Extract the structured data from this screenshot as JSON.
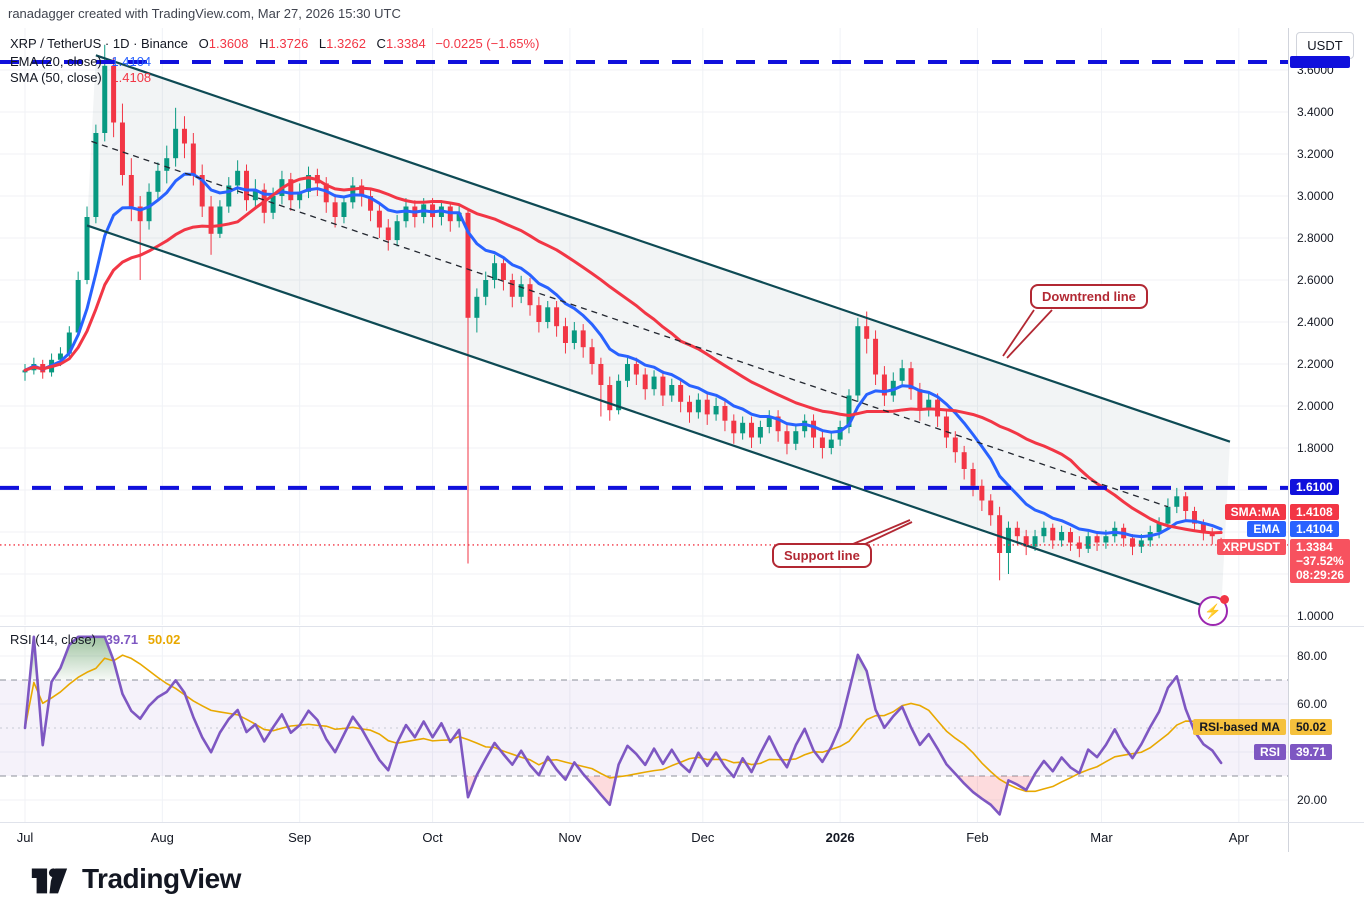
{
  "attribution": "ranadagger created with TradingView.com, Mar 27, 2026 15:30 UTC",
  "header": {
    "title": "XRP / TetherUS · 1D · Binance",
    "ohlc": [
      {
        "k": "O",
        "v": "1.3608"
      },
      {
        "k": "H",
        "v": "1.3726"
      },
      {
        "k": "L",
        "v": "1.3262"
      },
      {
        "k": "C",
        "v": "1.3384"
      }
    ],
    "change": "−0.0225 (−1.65%)"
  },
  "legend": {
    "ema_label": "EMA (20, close)",
    "ema_value": "1.4104",
    "sma_label": "SMA (50, close)",
    "sma_value": "1.4108",
    "rsi_label": "RSI (14, close)",
    "rsi_value": "39.71",
    "rsi_ma_value": "50.02"
  },
  "price_scale": {
    "currency_button": "USDT",
    "labels": {
      "support_level": "1.6100",
      "sma_tag": "SMA:MA",
      "sma_value": "1.4108",
      "ema_tag": "EMA",
      "ema_value": "1.4104",
      "symbol_tag": "XRPUSDT",
      "last_price": "1.3384",
      "change_pct": "−37.52%",
      "countdown": "08:29:26",
      "rsi_ma_tag": "RSI-based MA",
      "rsi_ma_value": "50.02",
      "rsi_tag": "RSI",
      "rsi_value": "39.71"
    }
  },
  "annotations": {
    "downtrend": "Downtrend line",
    "support": "Support line"
  },
  "logo": {
    "text": "TradingView"
  },
  "icons": {
    "alert_bolt": "⚡"
  },
  "colors": {
    "green": "#089981",
    "red": "#F23645",
    "ema_blue": "#2962FF",
    "sma_red": "#F23645",
    "channel_line": "#0E4A54",
    "channel_fill": "rgba(90,110,125,0.08)",
    "median_dash": "#22262F",
    "level_blue": "#1010DC",
    "callout_red": "#B22833",
    "rsi_purple": "#7E57C2",
    "rsi_yellow": "#E8A800",
    "rsi_band_fill": "rgba(126,87,194,0.08)",
    "overbought_green": "#2E7D32",
    "oversold_red": "#F23645",
    "grid": "#F0F2F6",
    "text": "#131722"
  },
  "chart_data": {
    "type": "candlestick",
    "symbol": "XRPUSDT",
    "interval": "1D",
    "price_axis": {
      "ticks": [
        "3.6000",
        "3.4000",
        "3.2000",
        "3.0000",
        "2.8000",
        "2.6000",
        "2.4000",
        "2.2000",
        "2.0000",
        "1.8000",
        "1.0000"
      ],
      "grid_min": 1.0,
      "grid_max": 3.6,
      "grid_step": 0.2
    },
    "rsi_axis": {
      "ticks": [
        "80.00",
        "60.00",
        "20.00"
      ],
      "grid": [
        80,
        60,
        40,
        20
      ],
      "overbought": 70,
      "oversold": 30,
      "mid": 50
    },
    "months": [
      {
        "label": "Jul",
        "day": 0
      },
      {
        "label": "Aug",
        "day": 31
      },
      {
        "label": "Sep",
        "day": 62
      },
      {
        "label": "Oct",
        "day": 92
      },
      {
        "label": "Nov",
        "day": 123
      },
      {
        "label": "Dec",
        "day": 153
      },
      {
        "label": "2026",
        "day": 184,
        "bold": true
      },
      {
        "label": "Feb",
        "day": 215
      },
      {
        "label": "Mar",
        "day": 243
      },
      {
        "label": "Apr",
        "day": 274
      }
    ],
    "days_per_candle": 2,
    "candles": [
      [
        2.16,
        2.2,
        2.12,
        2.17
      ],
      [
        2.17,
        2.23,
        2.15,
        2.2
      ],
      [
        2.2,
        2.22,
        2.13,
        2.16
      ],
      [
        2.16,
        2.25,
        2.14,
        2.22
      ],
      [
        2.22,
        2.28,
        2.19,
        2.25
      ],
      [
        2.25,
        2.38,
        2.23,
        2.35
      ],
      [
        2.35,
        2.64,
        2.33,
        2.6
      ],
      [
        2.6,
        2.95,
        2.58,
        2.9
      ],
      [
        2.9,
        3.34,
        2.87,
        3.3
      ],
      [
        3.3,
        3.72,
        3.26,
        3.62
      ],
      [
        3.62,
        3.66,
        3.28,
        3.35
      ],
      [
        3.35,
        3.44,
        3.05,
        3.1
      ],
      [
        3.1,
        3.18,
        2.88,
        2.95
      ],
      [
        2.95,
        3.0,
        2.6,
        2.88
      ],
      [
        2.88,
        3.06,
        2.84,
        3.02
      ],
      [
        3.02,
        3.16,
        2.98,
        3.12
      ],
      [
        3.12,
        3.24,
        3.06,
        3.18
      ],
      [
        3.18,
        3.42,
        3.14,
        3.32
      ],
      [
        3.32,
        3.38,
        3.18,
        3.25
      ],
      [
        3.25,
        3.3,
        3.05,
        3.1
      ],
      [
        3.1,
        3.15,
        2.9,
        2.95
      ],
      [
        2.95,
        3.0,
        2.72,
        2.82
      ],
      [
        2.82,
        2.98,
        2.8,
        2.95
      ],
      [
        2.95,
        3.09,
        2.92,
        3.05
      ],
      [
        3.05,
        3.17,
        3.01,
        3.12
      ],
      [
        3.12,
        3.15,
        2.93,
        2.98
      ],
      [
        2.98,
        3.08,
        2.94,
        3.03
      ],
      [
        3.03,
        3.06,
        2.87,
        2.92
      ],
      [
        2.92,
        3.04,
        2.89,
        3.0
      ],
      [
        3.0,
        3.12,
        2.96,
        3.08
      ],
      [
        3.08,
        3.11,
        2.93,
        2.98
      ],
      [
        2.98,
        3.06,
        2.94,
        3.02
      ],
      [
        3.02,
        3.14,
        2.99,
        3.1
      ],
      [
        3.1,
        3.13,
        3.0,
        3.06
      ],
      [
        3.06,
        3.09,
        2.92,
        2.97
      ],
      [
        2.97,
        3.01,
        2.85,
        2.9
      ],
      [
        2.9,
        3.0,
        2.87,
        2.97
      ],
      [
        2.97,
        3.09,
        2.94,
        3.05
      ],
      [
        3.05,
        3.08,
        2.95,
        3.0
      ],
      [
        3.0,
        3.03,
        2.88,
        2.93
      ],
      [
        2.93,
        2.96,
        2.8,
        2.85
      ],
      [
        2.85,
        2.89,
        2.74,
        2.79
      ],
      [
        2.79,
        2.91,
        2.76,
        2.88
      ],
      [
        2.88,
        2.99,
        2.85,
        2.95
      ],
      [
        2.95,
        2.98,
        2.85,
        2.9
      ],
      [
        2.9,
        2.99,
        2.87,
        2.96
      ],
      [
        2.96,
        2.99,
        2.85,
        2.9
      ],
      [
        2.9,
        2.98,
        2.86,
        2.95
      ],
      [
        2.95,
        2.97,
        2.83,
        2.88
      ],
      [
        2.88,
        2.96,
        2.85,
        2.92
      ],
      [
        2.92,
        2.94,
        1.25,
        2.42
      ],
      [
        2.42,
        2.56,
        2.35,
        2.52
      ],
      [
        2.52,
        2.64,
        2.48,
        2.6
      ],
      [
        2.6,
        2.72,
        2.56,
        2.68
      ],
      [
        2.68,
        2.71,
        2.55,
        2.6
      ],
      [
        2.6,
        2.63,
        2.47,
        2.52
      ],
      [
        2.52,
        2.62,
        2.49,
        2.58
      ],
      [
        2.58,
        2.61,
        2.43,
        2.48
      ],
      [
        2.48,
        2.52,
        2.35,
        2.4
      ],
      [
        2.4,
        2.5,
        2.37,
        2.47
      ],
      [
        2.47,
        2.5,
        2.33,
        2.38
      ],
      [
        2.38,
        2.42,
        2.25,
        2.3
      ],
      [
        2.3,
        2.4,
        2.27,
        2.36
      ],
      [
        2.36,
        2.39,
        2.23,
        2.28
      ],
      [
        2.28,
        2.32,
        2.15,
        2.2
      ],
      [
        2.2,
        2.23,
        1.95,
        2.1
      ],
      [
        2.1,
        2.14,
        1.93,
        1.98
      ],
      [
        1.98,
        2.15,
        1.96,
        2.12
      ],
      [
        2.12,
        2.24,
        2.09,
        2.2
      ],
      [
        2.2,
        2.23,
        2.1,
        2.15
      ],
      [
        2.15,
        2.18,
        2.03,
        2.08
      ],
      [
        2.08,
        2.17,
        2.05,
        2.14
      ],
      [
        2.14,
        2.17,
        2.0,
        2.05
      ],
      [
        2.05,
        2.13,
        2.02,
        2.1
      ],
      [
        2.1,
        2.13,
        1.97,
        2.02
      ],
      [
        2.02,
        2.05,
        1.92,
        1.97
      ],
      [
        1.97,
        2.06,
        1.94,
        2.03
      ],
      [
        2.03,
        2.06,
        1.91,
        1.96
      ],
      [
        1.96,
        2.04,
        1.93,
        2.0
      ],
      [
        2.0,
        2.03,
        1.88,
        1.93
      ],
      [
        1.93,
        1.96,
        1.82,
        1.87
      ],
      [
        1.87,
        1.95,
        1.84,
        1.92
      ],
      [
        1.92,
        1.95,
        1.8,
        1.85
      ],
      [
        1.85,
        1.93,
        1.82,
        1.9
      ],
      [
        1.9,
        1.98,
        1.87,
        1.95
      ],
      [
        1.95,
        1.98,
        1.83,
        1.88
      ],
      [
        1.88,
        1.91,
        1.77,
        1.82
      ],
      [
        1.82,
        1.91,
        1.79,
        1.88
      ],
      [
        1.88,
        1.96,
        1.85,
        1.93
      ],
      [
        1.93,
        1.96,
        1.8,
        1.85
      ],
      [
        1.85,
        1.88,
        1.75,
        1.8
      ],
      [
        1.8,
        1.87,
        1.77,
        1.84
      ],
      [
        1.84,
        1.93,
        1.81,
        1.9
      ],
      [
        1.9,
        2.08,
        1.87,
        2.05
      ],
      [
        2.05,
        2.42,
        2.02,
        2.38
      ],
      [
        2.38,
        2.45,
        2.25,
        2.32
      ],
      [
        2.32,
        2.36,
        2.1,
        2.15
      ],
      [
        2.15,
        2.19,
        2.0,
        2.05
      ],
      [
        2.05,
        2.16,
        2.02,
        2.12
      ],
      [
        2.12,
        2.22,
        2.09,
        2.18
      ],
      [
        2.18,
        2.21,
        2.03,
        2.08
      ],
      [
        2.08,
        2.11,
        1.93,
        1.98
      ],
      [
        1.98,
        2.07,
        1.95,
        2.03
      ],
      [
        2.03,
        2.06,
        1.9,
        1.95
      ],
      [
        1.95,
        1.98,
        1.8,
        1.85
      ],
      [
        1.85,
        1.88,
        1.73,
        1.78
      ],
      [
        1.78,
        1.81,
        1.65,
        1.7
      ],
      [
        1.7,
        1.73,
        1.57,
        1.62
      ],
      [
        1.62,
        1.65,
        1.5,
        1.55
      ],
      [
        1.55,
        1.58,
        1.43,
        1.48
      ],
      [
        1.48,
        1.52,
        1.17,
        1.3
      ],
      [
        1.3,
        1.45,
        1.2,
        1.42
      ],
      [
        1.42,
        1.45,
        1.34,
        1.38
      ],
      [
        1.38,
        1.41,
        1.29,
        1.33
      ],
      [
        1.33,
        1.41,
        1.31,
        1.38
      ],
      [
        1.38,
        1.45,
        1.35,
        1.42
      ],
      [
        1.42,
        1.44,
        1.32,
        1.36
      ],
      [
        1.36,
        1.43,
        1.33,
        1.4
      ],
      [
        1.4,
        1.42,
        1.31,
        1.35
      ],
      [
        1.35,
        1.38,
        1.28,
        1.32
      ],
      [
        1.32,
        1.4,
        1.3,
        1.38
      ],
      [
        1.38,
        1.4,
        1.31,
        1.35
      ],
      [
        1.35,
        1.41,
        1.32,
        1.38
      ],
      [
        1.38,
        1.45,
        1.35,
        1.42
      ],
      [
        1.42,
        1.44,
        1.33,
        1.37
      ],
      [
        1.37,
        1.39,
        1.29,
        1.33
      ],
      [
        1.33,
        1.39,
        1.3,
        1.36
      ],
      [
        1.36,
        1.43,
        1.33,
        1.4
      ],
      [
        1.4,
        1.47,
        1.37,
        1.44
      ],
      [
        1.44,
        1.56,
        1.41,
        1.52
      ],
      [
        1.52,
        1.61,
        1.49,
        1.57
      ],
      [
        1.57,
        1.59,
        1.46,
        1.5
      ],
      [
        1.5,
        1.52,
        1.4,
        1.44
      ],
      [
        1.44,
        1.46,
        1.36,
        1.4
      ],
      [
        1.4,
        1.42,
        1.34,
        1.38
      ],
      [
        1.3608,
        1.3726,
        1.3262,
        1.3384
      ]
    ],
    "levels": {
      "resistance": 3.638,
      "support": 1.61,
      "last_price": 1.3384
    },
    "channel": {
      "upper": [
        [
          16,
          3.67
        ],
        [
          272,
          1.83
        ]
      ],
      "lower": [
        [
          14,
          2.86
        ],
        [
          270,
          1.02
        ]
      ],
      "median": [
        [
          15,
          3.26
        ],
        [
          258,
          1.52
        ]
      ]
    },
    "indicator_settings": {
      "ema_visual_period": 10,
      "sma_visual_period": 25,
      "rsi_visual_period": 7,
      "rsi_ma_visual_period": 9
    }
  }
}
